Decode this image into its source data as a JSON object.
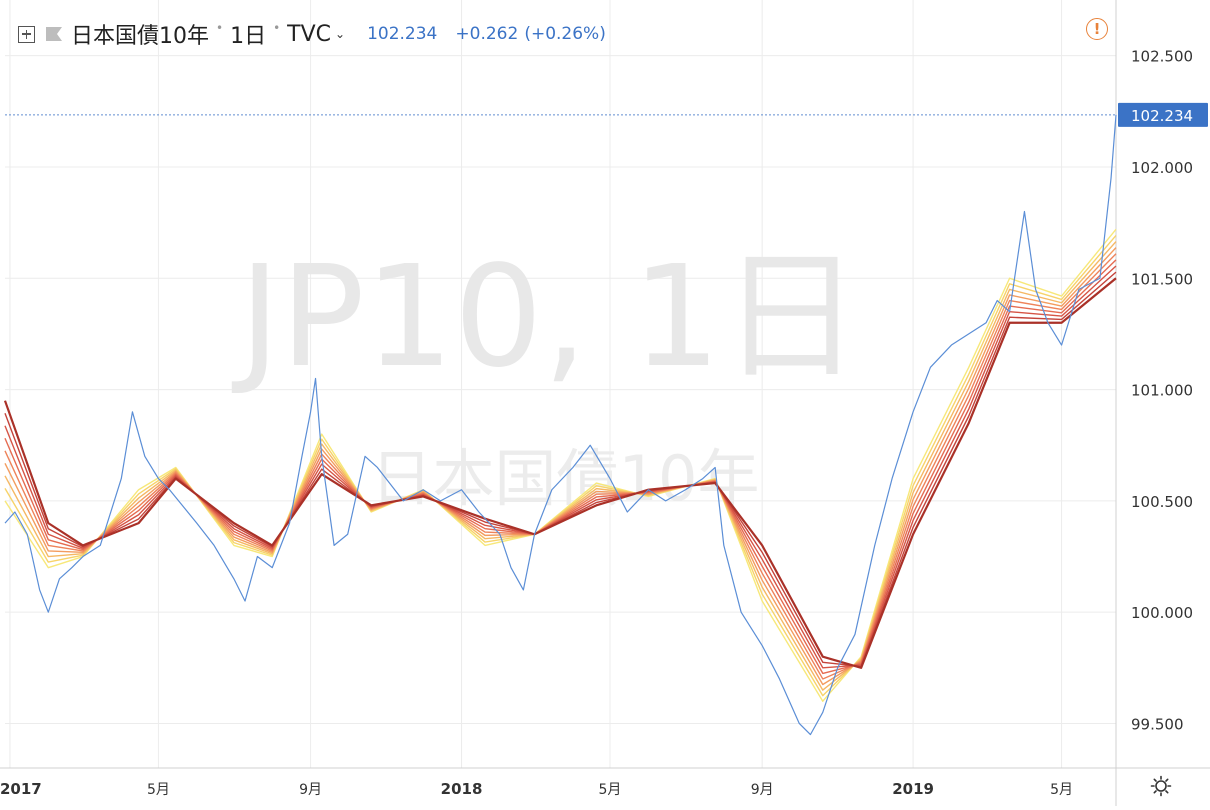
{
  "header": {
    "symbol_name": "日本国債10年",
    "interval": "1日",
    "source": "TVC",
    "price": "102.234",
    "change": "+0.262",
    "change_pct": "(+0.26%)",
    "icons": [
      "add-indicator-icon",
      "flag-icon",
      "chevron-down-icon",
      "alert-icon",
      "settings-icon"
    ]
  },
  "watermark": {
    "main": "JP10, 1日",
    "sub": "日本国債10年"
  },
  "colors": {
    "price_line": "#5b8ed6",
    "last_price_label": "#3b73c6",
    "ribbon": [
      "#f7e87a",
      "#f7d36a",
      "#f5b864",
      "#f39c5f",
      "#ee835a",
      "#e56b51",
      "#d65445",
      "#c4433a",
      "#aa3128"
    ],
    "grid": "#ececec",
    "alert": "#e8823a"
  },
  "chart_data": {
    "type": "line",
    "title": "日本国債10年",
    "x_axis": {
      "ticks": [
        "2017",
        "5月",
        "9月",
        "2018",
        "5月",
        "9月",
        "2019",
        "5月"
      ],
      "tick_dates": [
        "2017-01",
        "2017-05",
        "2017-09",
        "2018-01",
        "2018-05",
        "2018-09",
        "2019-01",
        "2019-05"
      ],
      "range": [
        "2016-12-28",
        "2019-06-14"
      ]
    },
    "y_axis": {
      "ticks": [
        "99.500",
        "100.000",
        "100.500",
        "101.000",
        "101.500",
        "102.000",
        "102.500"
      ],
      "range": [
        99.3,
        102.75
      ],
      "position": "right"
    },
    "last_price": 102.234,
    "last_price_label": "102.234",
    "grid": true,
    "series": [
      {
        "kind": "price",
        "x": [
          "2016-12-28",
          "2017-01-05",
          "2017-01-15",
          "2017-01-25",
          "2017-02-01",
          "2017-02-10",
          "2017-02-20",
          "2017-03-01",
          "2017-03-15",
          "2017-04-01",
          "2017-04-10",
          "2017-04-20",
          "2017-05-01",
          "2017-05-10",
          "2017-06-01",
          "2017-06-15",
          "2017-07-01",
          "2017-07-10",
          "2017-07-20",
          "2017-08-01",
          "2017-08-15",
          "2017-08-25",
          "2017-09-01",
          "2017-09-05",
          "2017-09-10",
          "2017-09-20",
          "2017-10-01",
          "2017-10-15",
          "2017-10-25",
          "2017-11-01",
          "2017-11-15",
          "2017-12-01",
          "2017-12-15",
          "2018-01-01",
          "2018-01-15",
          "2018-02-01",
          "2018-02-10",
          "2018-02-20",
          "2018-03-01",
          "2018-03-15",
          "2018-04-01",
          "2018-04-15",
          "2018-05-01",
          "2018-05-15",
          "2018-06-01",
          "2018-06-15",
          "2018-07-01",
          "2018-07-15",
          "2018-07-25",
          "2018-08-01",
          "2018-08-15",
          "2018-09-01",
          "2018-09-15",
          "2018-10-01",
          "2018-10-10",
          "2018-10-20",
          "2018-11-01",
          "2018-11-15",
          "2018-12-01",
          "2018-12-15",
          "2019-01-01",
          "2019-01-15",
          "2019-02-01",
          "2019-02-15",
          "2019-03-01",
          "2019-03-10",
          "2019-03-20",
          "2019-04-01",
          "2019-04-10",
          "2019-04-20",
          "2019-05-01",
          "2019-05-15",
          "2019-06-01",
          "2019-06-10",
          "2019-06-14"
        ],
        "values": [
          100.4,
          100.45,
          100.35,
          100.1,
          100.0,
          100.15,
          100.2,
          100.25,
          100.3,
          100.6,
          100.9,
          100.7,
          100.6,
          100.55,
          100.4,
          100.3,
          100.15,
          100.05,
          100.25,
          100.2,
          100.4,
          100.7,
          100.9,
          101.05,
          100.7,
          100.3,
          100.35,
          100.7,
          100.65,
          100.6,
          100.5,
          100.55,
          100.5,
          100.55,
          100.45,
          100.35,
          100.2,
          100.1,
          100.35,
          100.55,
          100.65,
          100.75,
          100.6,
          100.45,
          100.55,
          100.5,
          100.55,
          100.6,
          100.65,
          100.3,
          100.0,
          99.85,
          99.7,
          99.5,
          99.45,
          99.55,
          99.75,
          99.9,
          100.3,
          100.6,
          100.9,
          101.1,
          101.2,
          101.25,
          101.3,
          101.4,
          101.35,
          101.8,
          101.45,
          101.3,
          101.2,
          101.45,
          101.5,
          101.95,
          102.234
        ]
      },
      {
        "kind": "ema_ribbon_fastest",
        "x": [
          "2016-12-28",
          "2017-02-01",
          "2017-03-01",
          "2017-04-15",
          "2017-05-15",
          "2017-07-01",
          "2017-08-01",
          "2017-09-10",
          "2017-10-20",
          "2017-12-01",
          "2018-01-20",
          "2018-03-01",
          "2018-04-20",
          "2018-06-01",
          "2018-07-25",
          "2018-09-01",
          "2018-10-20",
          "2018-11-20",
          "2019-01-01",
          "2019-02-15",
          "2019-03-20",
          "2019-05-01",
          "2019-06-14"
        ],
        "values": [
          100.5,
          100.2,
          100.25,
          100.55,
          100.65,
          100.3,
          100.25,
          100.8,
          100.45,
          100.55,
          100.3,
          100.35,
          100.58,
          100.52,
          100.6,
          100.05,
          99.6,
          99.8,
          100.6,
          101.1,
          101.5,
          101.42,
          101.72
        ]
      },
      {
        "kind": "ema_ribbon_slowest",
        "x": [
          "2016-12-28",
          "2017-02-01",
          "2017-03-01",
          "2017-04-15",
          "2017-05-15",
          "2017-07-01",
          "2017-08-01",
          "2017-09-10",
          "2017-10-20",
          "2017-12-01",
          "2018-01-20",
          "2018-03-01",
          "2018-04-20",
          "2018-06-01",
          "2018-07-25",
          "2018-09-01",
          "2018-10-20",
          "2018-11-20",
          "2019-01-01",
          "2019-02-15",
          "2019-03-20",
          "2019-05-01",
          "2019-06-14"
        ],
        "values": [
          100.95,
          100.4,
          100.3,
          100.4,
          100.6,
          100.4,
          100.3,
          100.62,
          100.48,
          100.52,
          100.42,
          100.35,
          100.48,
          100.55,
          100.58,
          100.3,
          99.8,
          99.75,
          100.35,
          100.85,
          101.3,
          101.3,
          101.5
        ]
      }
    ]
  }
}
